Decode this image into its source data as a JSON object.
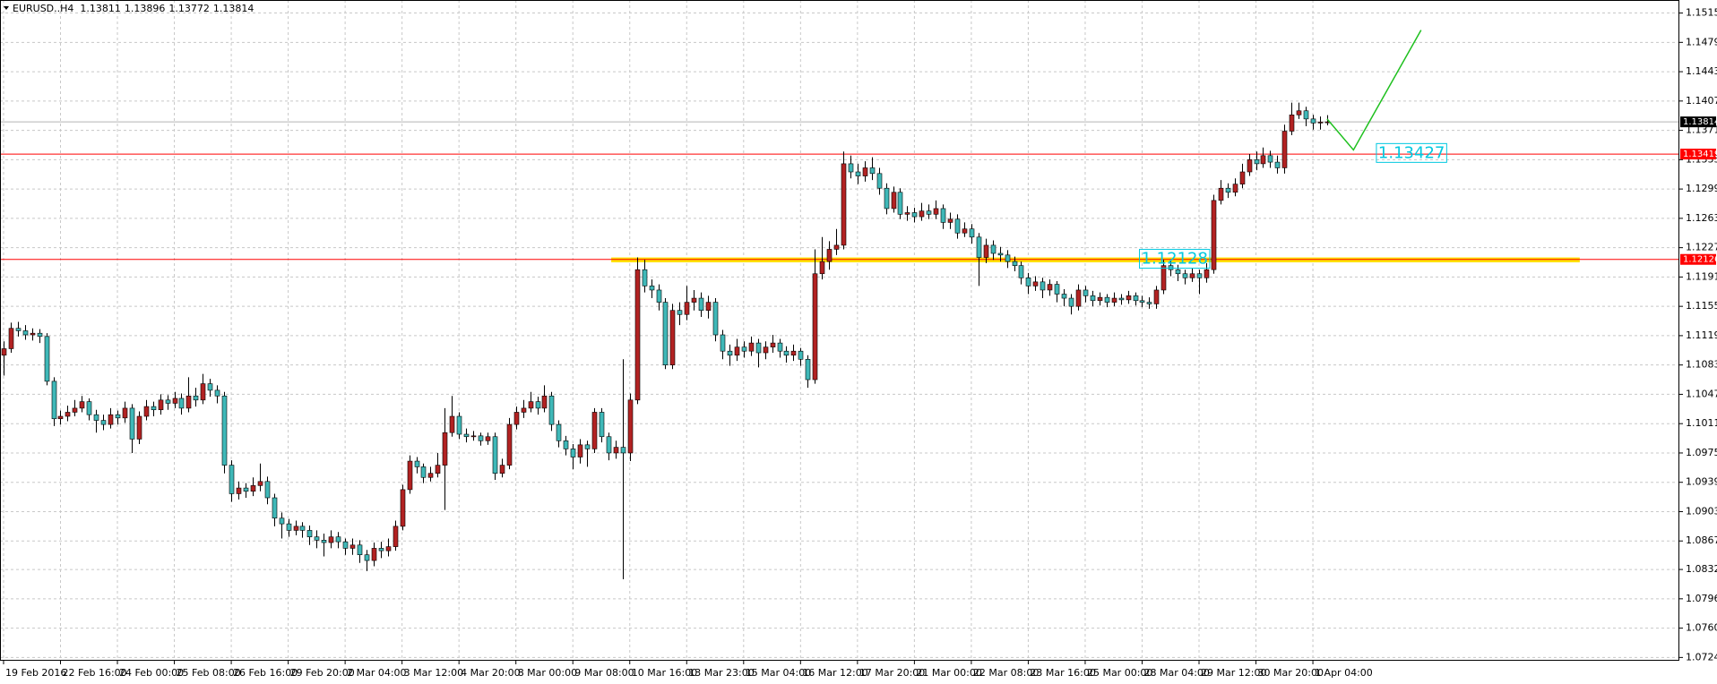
{
  "chart_data": {
    "type": "candlestick",
    "symbol": "EURUSD..H4",
    "categories": [
      "19 Feb 2016",
      null,
      null,
      null,
      null,
      null,
      null,
      null,
      "22 Feb 16:00",
      null,
      null,
      null,
      null,
      null,
      null,
      null,
      "24 Feb 00:00",
      null,
      null,
      null,
      null,
      null,
      null,
      null,
      "25 Feb 08:00",
      null,
      null,
      null,
      null,
      null,
      null,
      null,
      "26 Feb 16:00",
      null,
      null,
      null,
      null,
      null,
      null,
      null,
      "29 Feb 20:00",
      null,
      null,
      null,
      null,
      null,
      null,
      null,
      "2 Mar 04:00",
      null,
      null,
      null,
      null,
      null,
      null,
      null,
      "3 Mar 12:00",
      null,
      null,
      null,
      null,
      null,
      null,
      null,
      "4 Mar 20:00",
      null,
      null,
      null,
      null,
      null,
      null,
      null,
      "8 Mar 00:00",
      null,
      null,
      null,
      null,
      null,
      null,
      null,
      "9 Mar 08:00",
      null,
      null,
      null,
      null,
      null,
      null,
      null,
      "10 Mar 16:00",
      null,
      null,
      null,
      null,
      null,
      null,
      null,
      "13 Mar 23:00",
      null,
      null,
      null,
      null,
      null,
      null,
      null,
      "15 Mar 04:00",
      null,
      null,
      null,
      null,
      null,
      null,
      null,
      "16 Mar 12:00",
      null,
      null,
      null,
      null,
      null,
      null,
      null,
      "17 Mar 20:00",
      null,
      null,
      null,
      null,
      null,
      null,
      null,
      "21 Mar 00:00",
      null,
      null,
      null,
      null,
      null,
      null,
      null,
      "22 Mar 08:00",
      null,
      null,
      null,
      null,
      null,
      null,
      null,
      "23 Mar 16:00",
      null,
      null,
      null,
      null,
      null,
      null,
      null,
      "25 Mar 00:00",
      null,
      null,
      null,
      null,
      null,
      null,
      null,
      "28 Mar 04:00",
      null,
      null,
      null,
      null,
      null,
      null,
      null,
      "29 Mar 12:00",
      null,
      null,
      null,
      null,
      null,
      null,
      null,
      "30 Mar 20:00",
      null,
      null,
      null,
      null,
      null,
      null,
      null,
      "1 Apr 04:00",
      null,
      null
    ],
    "open": [
      1.1095,
      1.1103,
      1.1128,
      1.1125,
      1.112,
      1.1122,
      1.1118,
      1.1063,
      1.1017,
      1.102,
      1.1025,
      1.103,
      1.1038,
      1.1022,
      1.1015,
      1.101,
      1.1022,
      1.1018,
      1.103,
      1.0992,
      1.102,
      1.1032,
      1.1028,
      1.104,
      1.1036,
      1.1042,
      1.103,
      1.1045,
      1.104,
      1.106,
      1.1052,
      1.1045,
      1.096,
      1.0925,
      1.0932,
      1.0928,
      1.0935,
      1.094,
      1.092,
      1.0895,
      1.0888,
      1.088,
      1.0885,
      1.088,
      1.0872,
      1.0868,
      1.0865,
      1.0872,
      1.0866,
      1.0858,
      1.0862,
      1.085,
      1.0843,
      1.0858,
      1.0855,
      1.086,
      1.0885,
      1.093,
      1.0965,
      1.0958,
      1.0945,
      1.095,
      1.096,
      1.1,
      1.102,
      1.0998,
      1.0995,
      1.0996,
      1.099,
      1.0995,
      1.095,
      1.096,
      1.101,
      1.1025,
      1.103,
      1.1038,
      1.103,
      1.1045,
      1.101,
      1.099,
      1.098,
      1.097,
      1.0985,
      1.098,
      1.1025,
      1.0995,
      1.0975,
      1.0982,
      1.0975,
      1.104,
      1.12,
      1.118,
      1.1175,
      1.116,
      1.1083,
      1.115,
      1.1145,
      1.116,
      1.1165,
      1.115,
      1.116,
      1.112,
      1.11,
      1.1095,
      1.1105,
      1.11,
      1.111,
      1.1098,
      1.1105,
      1.111,
      1.11,
      1.1095,
      1.11,
      1.109,
      1.1065,
      1.1195,
      1.121,
      1.1225,
      1.123,
      1.133,
      1.132,
      1.1315,
      1.1325,
      1.1318,
      1.13,
      1.1275,
      1.1295,
      1.1268,
      1.127,
      1.1265,
      1.1272,
      1.1268,
      1.1275,
      1.1258,
      1.1262,
      1.1245,
      1.125,
      1.124,
      1.1215,
      1.123,
      1.122,
      1.1218,
      1.121,
      1.1205,
      1.119,
      1.118,
      1.1185,
      1.1175,
      1.1182,
      1.117,
      1.1165,
      1.1155,
      1.1175,
      1.1168,
      1.1162,
      1.1166,
      1.116,
      1.1165,
      1.1163,
      1.1168,
      1.1162,
      1.116,
      1.1158,
      1.1175,
      1.1205,
      1.12,
      1.1195,
      1.119,
      1.1195,
      1.119,
      1.12,
      1.1285,
      1.13,
      1.1295,
      1.1305,
      1.132,
      1.1335,
      1.133,
      1.134,
      1.1332,
      1.1325,
      1.137,
      1.139,
      1.1395,
      1.1385,
      1.138,
      1.13811
    ],
    "high": [
      1.1112,
      1.1135,
      1.1136,
      1.1132,
      1.1128,
      1.1127,
      1.1122,
      1.1068,
      1.1027,
      1.1033,
      1.104,
      1.1045,
      1.1042,
      1.1028,
      1.1022,
      1.103,
      1.1027,
      1.1038,
      1.1035,
      1.1026,
      1.104,
      1.1038,
      1.1047,
      1.1046,
      1.105,
      1.1048,
      1.1068,
      1.1055,
      1.1072,
      1.1066,
      1.1058,
      1.105,
      1.0966,
      1.094,
      1.0938,
      1.0945,
      1.0962,
      1.0946,
      1.0925,
      1.0902,
      1.0894,
      1.0892,
      1.089,
      1.0886,
      1.088,
      1.0876,
      1.088,
      1.0878,
      1.087,
      1.087,
      1.0868,
      1.0856,
      1.0865,
      1.0866,
      1.087,
      1.0892,
      1.0936,
      1.0972,
      1.097,
      1.0962,
      1.0958,
      1.0975,
      1.103,
      1.1045,
      1.1025,
      1.1005,
      1.1002,
      1.1,
      1.1,
      1.1,
      1.0968,
      1.1018,
      1.1032,
      1.104,
      1.105,
      1.1044,
      1.1058,
      1.105,
      1.1015,
      1.0996,
      1.0986,
      1.0992,
      1.099,
      1.103,
      1.103,
      1.1,
      1.099,
      1.109,
      1.1048,
      1.1215,
      1.1212,
      1.1188,
      1.1182,
      1.1165,
      1.1158,
      1.116,
      1.118,
      1.1175,
      1.1172,
      1.1168,
      1.1165,
      1.1126,
      1.1108,
      1.1115,
      1.1112,
      1.1118,
      1.1115,
      1.1112,
      1.112,
      1.1115,
      1.1106,
      1.1108,
      1.1104,
      1.1095,
      1.1225,
      1.124,
      1.1235,
      1.125,
      1.1345,
      1.134,
      1.133,
      1.1333,
      1.1338,
      1.1325,
      1.1306,
      1.1302,
      1.13,
      1.1278,
      1.1276,
      1.1282,
      1.128,
      1.1285,
      1.128,
      1.127,
      1.1268,
      1.1258,
      1.1256,
      1.1245,
      1.1238,
      1.1236,
      1.1228,
      1.1224,
      1.1216,
      1.121,
      1.1196,
      1.1192,
      1.119,
      1.1188,
      1.1186,
      1.1176,
      1.117,
      1.1182,
      1.118,
      1.1174,
      1.1172,
      1.117,
      1.1172,
      1.117,
      1.1174,
      1.1172,
      1.1168,
      1.1166,
      1.118,
      1.1212,
      1.1212,
      1.1206,
      1.12,
      1.1202,
      1.12,
      1.1208,
      1.1292,
      1.131,
      1.1306,
      1.1312,
      1.133,
      1.1342,
      1.1345,
      1.135,
      1.1346,
      1.134,
      1.1378,
      1.1405,
      1.1405,
      1.14,
      1.139,
      1.1388,
      1.13896
    ],
    "low": [
      1.107,
      1.1098,
      1.1118,
      1.1114,
      1.1113,
      1.111,
      1.1058,
      1.1008,
      1.101,
      1.1014,
      1.102,
      1.1025,
      1.1015,
      1.1,
      1.1003,
      1.1005,
      1.101,
      1.1012,
      1.0975,
      1.0986,
      1.1015,
      1.102,
      1.1022,
      1.1028,
      1.103,
      1.1022,
      1.1025,
      1.1032,
      1.1035,
      1.1044,
      1.1036,
      1.095,
      1.0915,
      1.0918,
      1.092,
      1.0922,
      1.0928,
      1.0912,
      1.0885,
      1.087,
      1.0872,
      1.0874,
      1.0871,
      1.0862,
      1.0858,
      1.0848,
      1.0858,
      1.0858,
      1.085,
      1.085,
      1.084,
      1.083,
      1.0836,
      1.0846,
      1.0848,
      1.0855,
      1.088,
      1.0925,
      1.095,
      1.0938,
      1.094,
      1.0945,
      1.0905,
      1.0995,
      1.0992,
      1.0988,
      1.099,
      1.0984,
      1.0985,
      1.0942,
      1.0945,
      1.0955,
      1.1004,
      1.1018,
      1.1025,
      1.1022,
      1.1025,
      1.1002,
      1.0982,
      1.0972,
      1.0955,
      1.0962,
      1.0958,
      1.0975,
      1.0988,
      1.0966,
      1.0968,
      1.082,
      1.0965,
      1.1035,
      1.1172,
      1.1165,
      1.115,
      1.1078,
      1.1078,
      1.1132,
      1.1138,
      1.115,
      1.1142,
      1.114,
      1.1112,
      1.109,
      1.1082,
      1.1088,
      1.1092,
      1.1094,
      1.108,
      1.109,
      1.1098,
      1.1092,
      1.1086,
      1.1088,
      1.1082,
      1.1055,
      1.106,
      1.1188,
      1.12,
      1.1218,
      1.1225,
      1.1312,
      1.1305,
      1.1308,
      1.131,
      1.1292,
      1.1268,
      1.127,
      1.1262,
      1.126,
      1.1258,
      1.126,
      1.1262,
      1.1262,
      1.125,
      1.125,
      1.1238,
      1.124,
      1.1232,
      1.118,
      1.1208,
      1.1212,
      1.121,
      1.1202,
      1.1198,
      1.1182,
      1.117,
      1.1174,
      1.1165,
      1.1168,
      1.116,
      1.1155,
      1.1145,
      1.115,
      1.116,
      1.1155,
      1.1156,
      1.1154,
      1.1155,
      1.1157,
      1.1158,
      1.1156,
      1.1154,
      1.1152,
      1.1152,
      1.117,
      1.1192,
      1.1186,
      1.1182,
      1.1185,
      1.117,
      1.1184,
      1.1195,
      1.128,
      1.1288,
      1.129,
      1.13,
      1.1315,
      1.1322,
      1.1325,
      1.1325,
      1.1318,
      1.1318,
      1.1365,
      1.1385,
      1.1376,
      1.1372,
      1.1372,
      1.13772
    ],
    "close": [
      1.1103,
      1.1128,
      1.1125,
      1.112,
      1.1122,
      1.1118,
      1.1063,
      1.1017,
      1.102,
      1.1025,
      1.103,
      1.1038,
      1.1022,
      1.1015,
      1.101,
      1.1022,
      1.1018,
      1.103,
      1.0992,
      1.102,
      1.1032,
      1.1028,
      1.104,
      1.1036,
      1.1042,
      1.103,
      1.1045,
      1.104,
      1.106,
      1.1052,
      1.1045,
      1.096,
      1.0925,
      1.0932,
      1.0928,
      1.0935,
      1.094,
      1.092,
      1.0895,
      1.0888,
      1.088,
      1.0885,
      1.088,
      1.0872,
      1.0868,
      1.0865,
      1.0872,
      1.0866,
      1.0858,
      1.0862,
      1.085,
      1.0843,
      1.0858,
      1.0855,
      1.086,
      1.0885,
      1.093,
      1.0965,
      1.0958,
      1.0945,
      1.095,
      1.096,
      1.1,
      1.102,
      1.0998,
      1.0995,
      1.0996,
      1.099,
      1.0995,
      1.095,
      1.096,
      1.101,
      1.1025,
      1.103,
      1.1038,
      1.103,
      1.1045,
      1.101,
      1.099,
      1.098,
      1.097,
      1.0985,
      1.098,
      1.1025,
      1.0995,
      1.0975,
      1.0982,
      1.0975,
      1.104,
      1.12,
      1.118,
      1.1175,
      1.116,
      1.1083,
      1.115,
      1.1145,
      1.116,
      1.1165,
      1.115,
      1.116,
      1.112,
      1.11,
      1.1095,
      1.1105,
      1.11,
      1.111,
      1.1098,
      1.1105,
      1.111,
      1.11,
      1.1095,
      1.11,
      1.109,
      1.1065,
      1.1195,
      1.121,
      1.1225,
      1.123,
      1.133,
      1.132,
      1.1315,
      1.1325,
      1.1318,
      1.13,
      1.1275,
      1.1295,
      1.1268,
      1.127,
      1.1265,
      1.1272,
      1.1268,
      1.1275,
      1.1258,
      1.1262,
      1.1245,
      1.125,
      1.124,
      1.1215,
      1.123,
      1.122,
      1.1218,
      1.121,
      1.1205,
      1.119,
      1.118,
      1.1185,
      1.1175,
      1.1182,
      1.117,
      1.1165,
      1.1155,
      1.1175,
      1.1168,
      1.1162,
      1.1166,
      1.116,
      1.1165,
      1.1163,
      1.1168,
      1.1162,
      1.116,
      1.1158,
      1.1175,
      1.1205,
      1.12,
      1.1195,
      1.119,
      1.1195,
      1.119,
      1.12,
      1.1285,
      1.13,
      1.1295,
      1.1305,
      1.132,
      1.1335,
      1.133,
      1.134,
      1.1332,
      1.1325,
      1.137,
      1.139,
      1.1395,
      1.1385,
      1.138,
      1.13811,
      1.13814
    ],
    "up_color": "#b22222",
    "down_color": "#3fb8b8",
    "xlim": [
      -0.5,
      235.5
    ],
    "ylim": [
      1.072,
      1.1531
    ],
    "yticks": [
      {
        "value": 1.1515,
        "label": "1.15150"
      },
      {
        "value": 1.1479,
        "label": "1.14790"
      },
      {
        "value": 1.1443,
        "label": "1.14430"
      },
      {
        "value": 1.1407,
        "label": "1.14070"
      },
      {
        "value": 1.1371,
        "label": "1.13710"
      },
      {
        "value": 1.1335,
        "label": "1.13350"
      },
      {
        "value": 1.1299,
        "label": "1.12990"
      },
      {
        "value": 1.1263,
        "label": "1.12630"
      },
      {
        "value": 1.1227,
        "label": "1.12270"
      },
      {
        "value": 1.1191,
        "label": "1.11910"
      },
      {
        "value": 1.1155,
        "label": "1.11550"
      },
      {
        "value": 1.1119,
        "label": "1.11190"
      },
      {
        "value": 1.1083,
        "label": "1.10830"
      },
      {
        "value": 1.1047,
        "label": "1.10470"
      },
      {
        "value": 1.1011,
        "label": "1.10110"
      },
      {
        "value": 1.0975,
        "label": "1.09750"
      },
      {
        "value": 1.0939,
        "label": "1.09390"
      },
      {
        "value": 1.0903,
        "label": "1.09030"
      },
      {
        "value": 1.0867,
        "label": "1.08670"
      },
      {
        "value": 1.0832,
        "label": "1.08320"
      },
      {
        "value": 1.0796,
        "label": "1.07960"
      },
      {
        "value": 1.076,
        "label": "1.07600"
      },
      {
        "value": 1.0724,
        "label": "1.07240"
      }
    ],
    "grid": true,
    "hlines": [
      {
        "value": 1.13419,
        "color": "#ff0000"
      },
      {
        "value": 1.12126,
        "color": "#ff0000"
      }
    ],
    "current_price_color": "#b4b4b4",
    "zone": {
      "bar_from": 85.4,
      "bar_to": 221.5,
      "price_from": 1.1209,
      "price_to": 1.1215,
      "color": "#ffe000"
    },
    "price_labels": [
      {
        "value": 1.12128,
        "bar": 159.5
      },
      {
        "value": 1.13427,
        "bar": 192.8
      }
    ],
    "price_label_color": "#00c8e0",
    "trend_path": {
      "color": "#1fc01f",
      "points": [
        {
          "bar": 186,
          "price": 1.1385
        },
        {
          "bar": 189.7,
          "price": 1.1347
        },
        {
          "bar": 199.2,
          "price": 1.1494
        }
      ]
    }
  }
}
